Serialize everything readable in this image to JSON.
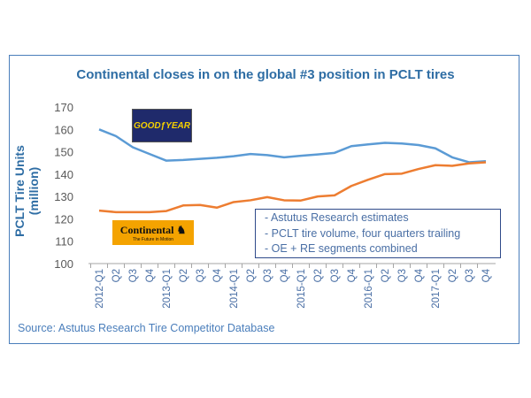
{
  "chart_data": {
    "type": "line",
    "title": "Continental closes in on the global #3 position in PCLT tires",
    "ylabel": "PCLT Tire Units (million)",
    "xlabel": "",
    "ylim": [
      100,
      170
    ],
    "yticks": [
      100,
      110,
      120,
      130,
      140,
      150,
      160,
      170
    ],
    "grid": false,
    "categories": [
      "2012-Q1",
      "Q2",
      "Q3",
      "Q4",
      "2013-Q1",
      "Q2",
      "Q3",
      "Q4",
      "2014-Q1",
      "Q2",
      "Q3",
      "Q4",
      "2015-Q1",
      "Q2",
      "Q3",
      "Q4",
      "2016-Q1",
      "Q2",
      "Q3",
      "Q4",
      "2017-Q1",
      "Q2",
      "Q3",
      "Q4"
    ],
    "series": [
      {
        "logo": "GOODYEAR",
        "color": "#5b9bd5",
        "values": [
          160,
          157,
          152,
          149,
          146,
          146.3,
          146.8,
          147.3,
          148,
          149,
          148.5,
          147.5,
          148.2,
          148.8,
          149.5,
          152.5,
          153.3,
          154,
          153.7,
          153,
          151.5,
          147.5,
          145.3,
          145.8
        ]
      },
      {
        "logo": "Continental",
        "logo_tagline": "The Future in Motion",
        "color": "#ed7d31",
        "values": [
          123.7,
          123,
          123,
          123,
          123.5,
          126,
          126.2,
          125,
          127.5,
          128.3,
          129.7,
          128.3,
          128.2,
          130,
          130.5,
          134.7,
          137.5,
          140,
          140.2,
          142.3,
          144,
          143.7,
          144.8,
          145.3
        ]
      }
    ],
    "annotations": [
      "- Astutus Research estimates",
      "- PCLT tire volume, four quarters trailing",
      "- OE + RE segments combined"
    ],
    "source": "Source: Astutus Research Tire Competitor Database"
  }
}
